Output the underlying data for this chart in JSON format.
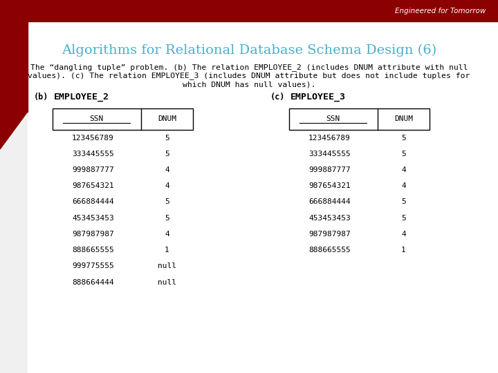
{
  "title": "Algorithms for Relational Database Schema Design (6)",
  "subtitle_line1": "The “dangling tuple” problem. (b) The relation EMPLOYEE_2 (includes DNUM attribute with null",
  "subtitle_line2": "values). (c) The relation EMPLOYEE_3 (includes DNUM attribute but does not include tuples for",
  "subtitle_line3": "which DNUM has null values).",
  "title_color": "#4BAFC8",
  "subtitle_color": "#000000",
  "bg_color": "#F0F0F0",
  "table_b_label": "(b)",
  "table_b_name": "EMPLOYEE_2",
  "table_c_label": "(c)",
  "table_c_name": "EMPLOYEE_3",
  "col_headers": [
    "SSN",
    "DNUM"
  ],
  "table_b_data": [
    [
      "123456789",
      "5"
    ],
    [
      "333445555",
      "5"
    ],
    [
      "999887777",
      "4"
    ],
    [
      "987654321",
      "4"
    ],
    [
      "666884444",
      "5"
    ],
    [
      "453453453",
      "5"
    ],
    [
      "987987987",
      "4"
    ],
    [
      "888665555",
      "1"
    ],
    [
      "999775555",
      "null"
    ],
    [
      "888664444",
      "null"
    ]
  ],
  "table_c_data": [
    [
      "123456789",
      "5"
    ],
    [
      "333445555",
      "5"
    ],
    [
      "999887777",
      "4"
    ],
    [
      "987654321",
      "4"
    ],
    [
      "666884444",
      "5"
    ],
    [
      "453453453",
      "5"
    ],
    [
      "987987987",
      "4"
    ],
    [
      "888665555",
      "1"
    ]
  ],
  "top_bar_color": "#8B0000",
  "top_right_text": "Engineered for Tomorrow",
  "top_right_text_color": "#FFFFFF",
  "content_bg": "#FFFFFF"
}
